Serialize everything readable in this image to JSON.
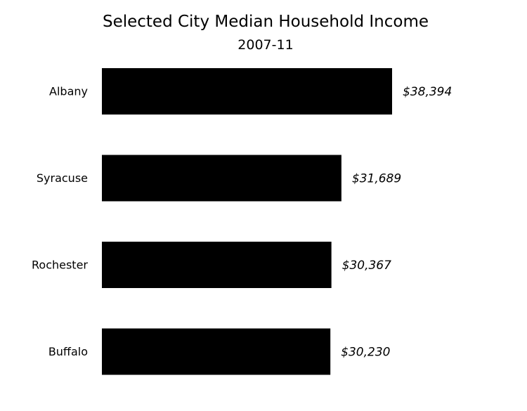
{
  "chart_data": {
    "type": "bar",
    "orientation": "horizontal",
    "title": "Selected City Median Household Income",
    "subtitle": "2007-11",
    "categories": [
      "Albany",
      "Syracuse",
      "Rochester",
      "Buffalo"
    ],
    "values": [
      38394,
      31689,
      30367,
      30230
    ],
    "value_labels": [
      "$38,394",
      "$31,689",
      "$30,367",
      "$30,230"
    ],
    "xlim": [
      0,
      38394
    ],
    "grid": false,
    "legend": "none",
    "bar_color": "#000000"
  }
}
